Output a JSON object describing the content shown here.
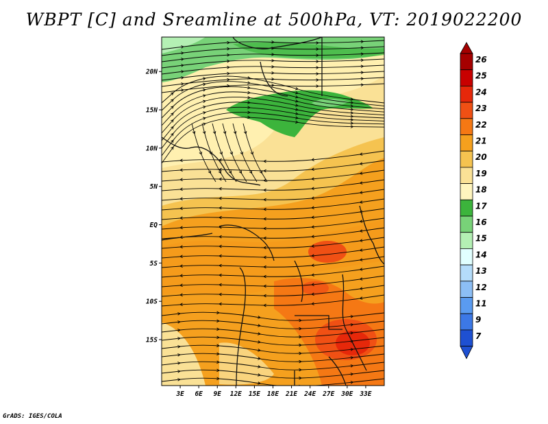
{
  "title": "WBPT [C] and Sreamline at 500hPa, VT: 2019022200",
  "credit": "GrADS: IGES/COLA",
  "map": {
    "lat_range": [
      -21,
      24.5
    ],
    "lon_range": [
      0,
      36
    ],
    "lat_ticks": [
      {
        "value": 20,
        "label": "20N"
      },
      {
        "value": 15,
        "label": "15N"
      },
      {
        "value": 10,
        "label": "10N"
      },
      {
        "value": 5,
        "label": "5N"
      },
      {
        "value": 0,
        "label": "EQ"
      },
      {
        "value": -5,
        "label": "5S"
      },
      {
        "value": -10,
        "label": "10S"
      },
      {
        "value": -15,
        "label": "15S"
      }
    ],
    "lon_ticks": [
      {
        "value": 3,
        "label": "3E"
      },
      {
        "value": 6,
        "label": "6E"
      },
      {
        "value": 9,
        "label": "9E"
      },
      {
        "value": 12,
        "label": "12E"
      },
      {
        "value": 15,
        "label": "15E"
      },
      {
        "value": 18,
        "label": "18E"
      },
      {
        "value": 21,
        "label": "21E"
      },
      {
        "value": 24,
        "label": "24E"
      },
      {
        "value": 27,
        "label": "27E"
      },
      {
        "value": 30,
        "label": "30E"
      },
      {
        "value": 33,
        "label": "33E"
      }
    ]
  },
  "colorbar": {
    "levels": [
      {
        "label": "26",
        "color": "#a50000"
      },
      {
        "label": "25",
        "color": "#c80000"
      },
      {
        "label": "24",
        "color": "#e6280a"
      },
      {
        "label": "23",
        "color": "#f05014"
      },
      {
        "label": "22",
        "color": "#f57814"
      },
      {
        "label": "21",
        "color": "#f5a01e"
      },
      {
        "label": "20",
        "color": "#f5c350"
      },
      {
        "label": "19",
        "color": "#fae196"
      },
      {
        "label": "18",
        "color": "#fff5be"
      },
      {
        "label": "17",
        "color": "#3cb43c"
      },
      {
        "label": "16",
        "color": "#78d278"
      },
      {
        "label": "15",
        "color": "#b4f0b4"
      },
      {
        "label": "14",
        "color": "#e1ffff"
      },
      {
        "label": "13",
        "color": "#b4dcfa"
      },
      {
        "label": "12",
        "color": "#8cbef5"
      },
      {
        "label": "11",
        "color": "#5a9bf0"
      },
      {
        "label": "9",
        "color": "#3c78e6"
      },
      {
        "label": "7",
        "color": "#1e50d2"
      }
    ],
    "bottom_color": "#1e50d2"
  }
}
